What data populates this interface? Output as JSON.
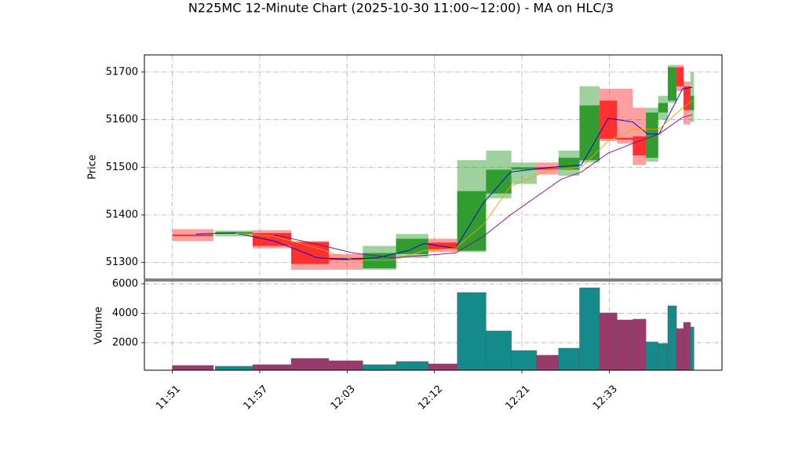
{
  "chart_data": {
    "type": "candlestick",
    "title": "N225MC 12-Minute Chart (2025-10-30 11:00~12:00) - MA on HLC/3",
    "ylabel": "Price",
    "volume_label": "Volume",
    "xlim": [
      -0.32,
      6.29
    ],
    "xticks": [
      {
        "value": 0,
        "label": "11:51"
      },
      {
        "value": 1,
        "label": "11:57"
      },
      {
        "value": 2,
        "label": "12:03"
      },
      {
        "value": 3,
        "label": "12:12"
      },
      {
        "value": 4,
        "label": "12:21"
      },
      {
        "value": 5,
        "label": "12:33"
      }
    ],
    "ylim": [
      51265,
      51736
    ],
    "yticks": [
      51300,
      51400,
      51500,
      51600,
      51700
    ],
    "volume_ylim": [
      130,
      6210
    ],
    "volume_yticks": [
      2000,
      4000,
      6000
    ],
    "grid": true,
    "up_color": "#2b9a2b",
    "down_color": "#ff2a2a",
    "volume_up_color": "#148a8a",
    "volume_down_color": "#9a3a6a",
    "candles": {
      "x0": [
        0,
        0.49,
        0.92,
        1.36,
        1.79,
        2.18,
        2.56,
        2.93,
        3.26,
        3.59,
        3.88,
        4.17,
        4.42,
        4.66,
        4.89,
        5.09,
        5.27,
        5.42,
        5.56,
        5.67,
        5.77,
        5.85,
        5.93
      ],
      "x1": [
        0.47,
        0.92,
        1.36,
        1.79,
        2.18,
        2.56,
        2.93,
        3.26,
        3.59,
        3.88,
        4.17,
        4.42,
        4.66,
        4.89,
        5.09,
        5.27,
        5.42,
        5.56,
        5.67,
        5.77,
        5.85,
        5.93,
        5.97
      ],
      "open": [
        51359,
        51361,
        51362,
        51343,
        51310,
        51288,
        51318,
        51342,
        51325,
        51445,
        51495,
        51500,
        51495,
        51515,
        51640,
        51562,
        51565,
        51520,
        51615,
        51640,
        51710,
        51670,
        51620
      ],
      "close": [
        51357,
        51364,
        51335,
        51297,
        51305,
        51320,
        51350,
        51328,
        51450,
        51495,
        51500,
        51495,
        51520,
        51630,
        51560,
        51558,
        51525,
        51615,
        51635,
        51710,
        51670,
        51620,
        51650
      ],
      "high": [
        51370,
        51367,
        51368,
        51345,
        51318,
        51335,
        51360,
        51350,
        51515,
        51535,
        51510,
        51510,
        51535,
        51670,
        51665,
        51665,
        51625,
        51625,
        51650,
        51715,
        51715,
        51680,
        51700
      ],
      "low": [
        51345,
        51355,
        51330,
        51285,
        51285,
        51285,
        51310,
        51322,
        51322,
        51435,
        51465,
        51485,
        51482,
        51510,
        51555,
        51550,
        51505,
        51512,
        51600,
        51635,
        51660,
        51590,
        51595
      ],
      "volume": [
        453,
        400,
        507,
        933,
        773,
        507,
        720,
        560,
        5413,
        2800,
        1467,
        1147,
        1627,
        5733,
        4027,
        3547,
        3600,
        2053,
        1947,
        4507,
        2960,
        3387,
        3067
      ]
    },
    "series": [
      {
        "color": "#0000cc",
        "x": [
          0.27,
          0.72,
          1.17,
          1.66,
          1.98,
          2.34,
          2.7,
          2.88,
          3.24,
          3.56,
          3.87,
          4.32,
          4.68,
          4.99,
          5.27,
          5.44,
          5.57,
          5.84,
          5.95
        ],
        "values": [
          51360,
          51362,
          51345,
          51310,
          51307,
          51310,
          51325,
          51340,
          51330,
          51425,
          51490,
          51500,
          51505,
          51603,
          51595,
          51570,
          51570,
          51665,
          51668
        ]
      },
      {
        "color": "#f0a000",
        "x": [
          0.72,
          1.17,
          1.66,
          2.07,
          2.52,
          2.88,
          3.24,
          3.56,
          3.87,
          4.32,
          4.68,
          4.99,
          5.27,
          5.57,
          5.84,
          5.95
        ],
        "values": [
          51362,
          51355,
          51330,
          51305,
          51305,
          51325,
          51330,
          51380,
          51460,
          51495,
          51500,
          51555,
          51580,
          51580,
          51625,
          51640
        ]
      },
      {
        "color": "#880088",
        "x": [
          1.17,
          1.62,
          2.07,
          2.52,
          3.24,
          3.56,
          3.87,
          4.45,
          4.68,
          4.99,
          5.27,
          5.57,
          5.84,
          5.95
        ],
        "values": [
          51358,
          51340,
          51320,
          51310,
          51320,
          51355,
          51400,
          51475,
          51490,
          51530,
          51550,
          51570,
          51605,
          51610
        ]
      }
    ]
  }
}
